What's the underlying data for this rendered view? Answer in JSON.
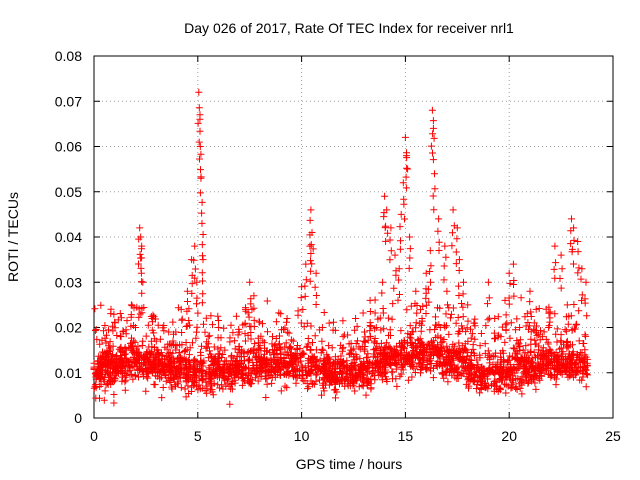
{
  "chart_data": {
    "type": "scatter",
    "title": "Day 026 of 2017, Rate Of TEC Index for receiver nrl1",
    "xlabel": "GPS time / hours",
    "ylabel": "ROTI / TECUs",
    "xlim": [
      0,
      25
    ],
    "ylim": [
      0,
      0.08
    ],
    "x_ticks": [
      "0",
      "5",
      "10",
      "15",
      "20",
      "25"
    ],
    "y_ticks": [
      "0",
      "0.01",
      "0.02",
      "0.03",
      "0.04",
      "0.05",
      "0.06",
      "0.07",
      "0.08"
    ],
    "grid": true,
    "marker": "+",
    "color": "#ff0000",
    "series": [
      {
        "name": "ROTI",
        "x": [
          0.1,
          0.3,
          0.5,
          0.8,
          1.0,
          1.3,
          1.5,
          1.8,
          2.0,
          2.2,
          2.25,
          2.3,
          2.35,
          2.5,
          2.8,
          3.0,
          3.3,
          3.6,
          4.0,
          4.2,
          4.5,
          4.7,
          4.85,
          4.95,
          5.05,
          5.1,
          5.12,
          5.15,
          5.2,
          5.25,
          5.5,
          5.8,
          6.0,
          6.3,
          6.6,
          7.0,
          7.3,
          7.5,
          7.7,
          8.0,
          8.3,
          8.6,
          9.0,
          9.3,
          9.6,
          10.0,
          10.2,
          10.4,
          10.45,
          10.5,
          10.7,
          11.0,
          11.3,
          11.6,
          12.0,
          12.3,
          12.6,
          13.0,
          13.3,
          13.6,
          13.9,
          14.0,
          14.1,
          14.3,
          14.5,
          14.7,
          14.8,
          14.9,
          15.0,
          15.05,
          15.2,
          15.5,
          15.8,
          16.0,
          16.2,
          16.3,
          16.35,
          16.4,
          16.6,
          16.9,
          17.0,
          17.3,
          17.5,
          17.6,
          17.8,
          18.0,
          18.3,
          18.6,
          19.0,
          19.3,
          19.6,
          19.8,
          20.0,
          20.2,
          20.5,
          20.8,
          21.0,
          21.3,
          21.6,
          21.9,
          22.2,
          22.5,
          22.8,
          23.0,
          23.1,
          23.3,
          23.5,
          23.7
        ],
        "y": [
          0.01,
          0.012,
          0.009,
          0.015,
          0.011,
          0.018,
          0.013,
          0.025,
          0.02,
          0.042,
          0.04,
          0.038,
          0.03,
          0.014,
          0.022,
          0.017,
          0.012,
          0.019,
          0.016,
          0.024,
          0.028,
          0.035,
          0.038,
          0.03,
          0.072,
          0.066,
          0.06,
          0.053,
          0.043,
          0.035,
          0.018,
          0.013,
          0.02,
          0.015,
          0.011,
          0.019,
          0.024,
          0.03,
          0.027,
          0.016,
          0.012,
          0.018,
          0.014,
          0.022,
          0.017,
          0.029,
          0.034,
          0.038,
          0.046,
          0.041,
          0.032,
          0.02,
          0.016,
          0.012,
          0.018,
          0.014,
          0.022,
          0.017,
          0.026,
          0.02,
          0.03,
          0.049,
          0.046,
          0.042,
          0.036,
          0.033,
          0.045,
          0.052,
          0.062,
          0.058,
          0.04,
          0.028,
          0.022,
          0.032,
          0.037,
          0.068,
          0.064,
          0.054,
          0.044,
          0.038,
          0.028,
          0.046,
          0.042,
          0.035,
          0.03,
          0.025,
          0.021,
          0.016,
          0.03,
          0.022,
          0.018,
          0.026,
          0.032,
          0.034,
          0.02,
          0.016,
          0.028,
          0.024,
          0.018,
          0.02,
          0.038,
          0.036,
          0.025,
          0.044,
          0.042,
          0.039,
          0.033,
          0.03
        ]
      }
    ]
  }
}
